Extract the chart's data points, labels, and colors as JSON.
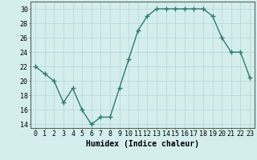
{
  "xlabel": "Humidex (Indice chaleur)",
  "x": [
    0,
    1,
    2,
    3,
    4,
    5,
    6,
    7,
    8,
    9,
    10,
    11,
    12,
    13,
    14,
    15,
    16,
    17,
    18,
    19,
    20,
    21,
    22,
    23
  ],
  "y": [
    22,
    21,
    20,
    17,
    19,
    16,
    14,
    15,
    15,
    19,
    23,
    27,
    29,
    30,
    30,
    30,
    30,
    30,
    30,
    29,
    26,
    24,
    24,
    20.5
  ],
  "line_color": "#2e7d6e",
  "marker": "+",
  "marker_size": 4,
  "bg_color": "#d4eeee",
  "grid_color": "#b8d4d4",
  "ylim": [
    13.5,
    31
  ],
  "xlim": [
    -0.5,
    23.5
  ],
  "yticks": [
    14,
    16,
    18,
    20,
    22,
    24,
    26,
    28,
    30
  ],
  "xticks": [
    0,
    1,
    2,
    3,
    4,
    5,
    6,
    7,
    8,
    9,
    10,
    11,
    12,
    13,
    14,
    15,
    16,
    17,
    18,
    19,
    20,
    21,
    22,
    23
  ],
  "linewidth": 1.0,
  "tick_fontsize": 6.0,
  "xlabel_fontsize": 7.0
}
